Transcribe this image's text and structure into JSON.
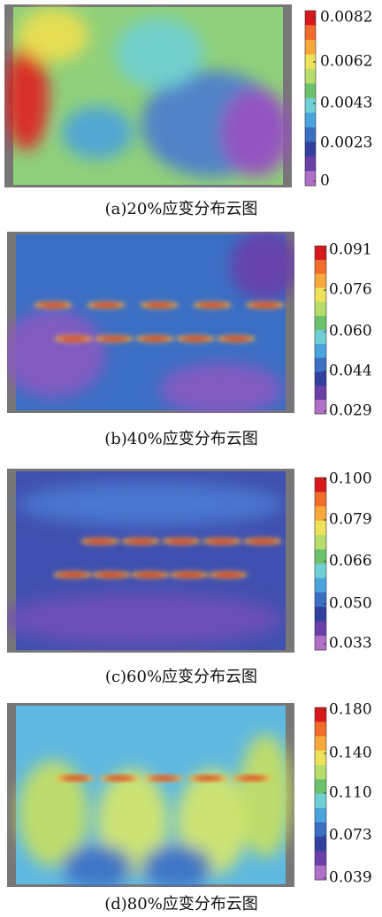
{
  "panels": [
    {
      "caption": "(a)20%应变分布云图",
      "scale": [
        "0.0082",
        "0.0062",
        "0.0043",
        "0.0023",
        "0"
      ]
    },
    {
      "caption": "(b)40%应变分布云图",
      "scale": [
        "0.091",
        "0.076",
        "0.060",
        "0.044",
        "0.029"
      ]
    },
    {
      "caption": "(c)60%应变分布云图",
      "scale": [
        "0.100",
        "0.079",
        "0.066",
        "0.050",
        "0.033"
      ]
    },
    {
      "caption": "(d)80%应变分布云图",
      "scale": [
        "0.180",
        "0.140",
        "0.110",
        "0.073",
        "0.039"
      ]
    }
  ]
}
